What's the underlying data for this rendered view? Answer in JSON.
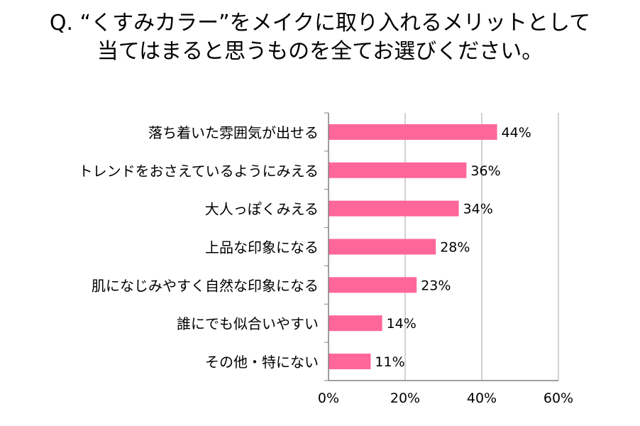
{
  "title": {
    "line1": "Q. “くすみカラー”をメイクに取り入れるメリットとして",
    "line2": "当てはまると思うものを全てお選びください。"
  },
  "colors": {
    "bar": "#ff6699",
    "grid": "#a6a6a6",
    "axis": "#808080"
  },
  "chart_data": {
    "type": "bar",
    "orientation": "horizontal",
    "categories": [
      "落ち着いた雰囲気が出せる",
      "トレンドをおさえているようにみえる",
      "大人っぽくみえる",
      "上品な印象になる",
      "肌になじみやすく自然な印象になる",
      "誰にでも似合いやすい",
      "その他・特にない"
    ],
    "values": [
      44,
      36,
      34,
      28,
      23,
      14,
      11
    ],
    "value_labels": [
      "44%",
      "36%",
      "34%",
      "28%",
      "23%",
      "14%",
      "11%"
    ],
    "xlim": [
      0,
      60
    ],
    "xticks": [
      0,
      20,
      40,
      60
    ],
    "xtick_labels": [
      "0%",
      "20%",
      "40%",
      "60%"
    ],
    "grid": true,
    "legend": "none"
  }
}
